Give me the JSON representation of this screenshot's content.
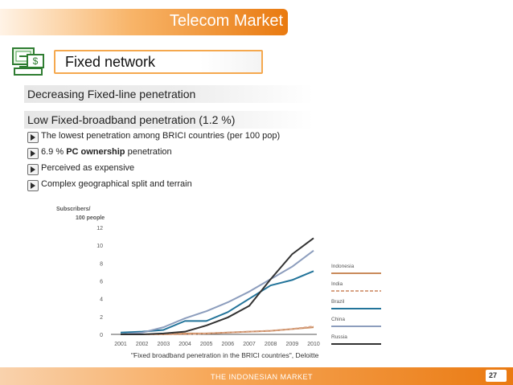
{
  "header": {
    "title": "Telecom Market"
  },
  "section": {
    "title": "Fixed network",
    "icon": "monitor-dollar-icon"
  },
  "bars": {
    "line1": "Decreasing Fixed-line penetration",
    "line2": "Low Fixed-broadband penetration (1.2 %)"
  },
  "bullets": [
    {
      "pre": "The lowest penetration among BRICI countries (per 100 pop)",
      "bold": "",
      "post": ""
    },
    {
      "pre": "6.9 % ",
      "bold": "PC ownership",
      "post": " penetration"
    },
    {
      "pre": "Perceived as expensive",
      "bold": "",
      "post": ""
    },
    {
      "pre": "Complex geographical split and terrain",
      "bold": "",
      "post": ""
    }
  ],
  "chart_data": {
    "type": "line",
    "ylabel": "Subscribers/ 100 people",
    "xlabel": "",
    "x": [
      "2001",
      "2002",
      "2003",
      "2004",
      "2005",
      "2006",
      "2007",
      "2008",
      "2009",
      "2010"
    ],
    "yticks": [
      "0",
      "2",
      "4",
      "6",
      "8",
      "10",
      "12"
    ],
    "ylim": [
      0,
      12
    ],
    "grid": false,
    "legend_position": "right",
    "series": [
      {
        "name": "Indonesia",
        "color": "#c98a5b",
        "dashed": false,
        "values": [
          0.0,
          0.0,
          0.0,
          0.1,
          0.1,
          0.2,
          0.3,
          0.4,
          0.6,
          0.8
        ]
      },
      {
        "name": "India",
        "color": "#d8a284",
        "dashed": true,
        "values": [
          0.0,
          0.0,
          0.0,
          0.0,
          0.1,
          0.2,
          0.3,
          0.4,
          0.6,
          0.9
        ]
      },
      {
        "name": "Brazil",
        "color": "#23749a",
        "dashed": false,
        "values": [
          0.2,
          0.3,
          0.5,
          1.5,
          1.5,
          2.5,
          4.0,
          5.5,
          6.1,
          7.1
        ]
      },
      {
        "name": "China",
        "color": "#8c9dbd",
        "dashed": false,
        "values": [
          0.0,
          0.2,
          0.8,
          1.8,
          2.6,
          3.6,
          4.8,
          6.2,
          7.6,
          9.4
        ]
      },
      {
        "name": "Russia",
        "color": "#323232",
        "dashed": false,
        "values": [
          0.0,
          0.0,
          0.1,
          0.3,
          1.0,
          1.9,
          3.2,
          6.2,
          9.0,
          10.8
        ]
      }
    ]
  },
  "caption": "\"Fixed broadband penetration in the BRICI countries\", Deloitte",
  "footer": {
    "text": "THE INDONESIAN MARKET",
    "page": "27"
  }
}
